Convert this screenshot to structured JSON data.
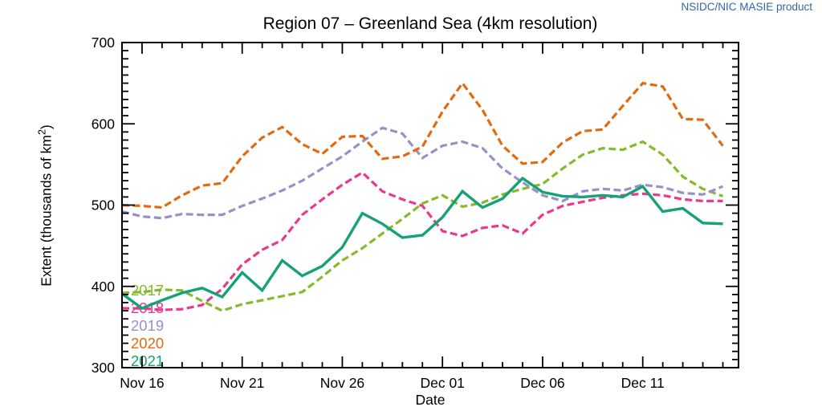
{
  "header": {
    "attribution": "NSIDC/NIC MASIE product",
    "attribution_color": "#3466A3"
  },
  "chart_data": {
    "type": "line",
    "title": "Region 07 – Greenland Sea (4km resolution)",
    "xlabel": "Date",
    "ylabel_prefix": "Extent (thousands of km",
    "ylabel_sup": "2",
    "ylabel_suffix": ")",
    "ylim": [
      300,
      700
    ],
    "y_major_ticks": [
      300,
      400,
      500,
      600,
      700
    ],
    "y_minor_step": 10,
    "grid": false,
    "legend_position": "inside-lower-left",
    "x_categories": [
      "Nov 15",
      "Nov 16",
      "Nov 17",
      "Nov 18",
      "Nov 19",
      "Nov 20",
      "Nov 21",
      "Nov 22",
      "Nov 23",
      "Nov 24",
      "Nov 25",
      "Nov 26",
      "Nov 27",
      "Nov 28",
      "Nov 29",
      "Nov 30",
      "Dec 01",
      "Dec 02",
      "Dec 03",
      "Dec 04",
      "Dec 05",
      "Dec 06",
      "Dec 07",
      "Dec 08",
      "Dec 09",
      "Dec 10",
      "Dec 11",
      "Dec 12",
      "Dec 13",
      "Dec 14",
      "Dec 15"
    ],
    "x_major_tick_labels": [
      "Nov 16",
      "Nov 21",
      "Nov 26",
      "Dec 01",
      "Dec 06",
      "Dec 11"
    ],
    "x_major_tick_indices": [
      1,
      6,
      11,
      16,
      21,
      26
    ],
    "axis_color": "#000000",
    "series": [
      {
        "name": "2017",
        "color": "#85BA2A",
        "dashed": true,
        "values": [
          392,
          393,
          396,
          395,
          382,
          370,
          378,
          383,
          388,
          393,
          412,
          432,
          447,
          465,
          483,
          502,
          512,
          498,
          503,
          513,
          520,
          526,
          545,
          562,
          570,
          568,
          578,
          562,
          535,
          520,
          511
        ]
      },
      {
        "name": "2018",
        "color": "#E8398F",
        "dashed": true,
        "values": [
          373,
          373,
          371,
          372,
          377,
          397,
          427,
          445,
          457,
          488,
          507,
          525,
          540,
          517,
          507,
          499,
          468,
          462,
          472,
          475,
          465,
          488,
          499,
          504,
          509,
          512,
          514,
          512,
          507,
          505,
          505
        ]
      },
      {
        "name": "2019",
        "color": "#9691C8",
        "dashed": true,
        "values": [
          492,
          486,
          484,
          489,
          488,
          488,
          499,
          508,
          518,
          530,
          545,
          560,
          578,
          595,
          588,
          558,
          573,
          578,
          570,
          545,
          528,
          512,
          505,
          517,
          520,
          518,
          525,
          522,
          515,
          513,
          523
        ]
      },
      {
        "name": "2020",
        "color": "#E26A10",
        "dashed": true,
        "values": [
          500,
          499,
          497,
          512,
          524,
          527,
          560,
          583,
          596,
          575,
          563,
          584,
          585,
          557,
          560,
          572,
          615,
          650,
          617,
          573,
          551,
          553,
          577,
          591,
          593,
          622,
          650,
          646,
          606,
          605,
          573
        ]
      },
      {
        "name": "2021",
        "color": "#16A177",
        "dashed": false,
        "values": [
          391,
          373,
          383,
          392,
          398,
          387,
          417,
          395,
          432,
          413,
          425,
          448,
          490,
          477,
          460,
          463,
          485,
          517,
          497,
          508,
          533,
          516,
          511,
          510,
          512,
          510,
          523,
          492,
          496,
          478,
          477
        ]
      }
    ]
  }
}
